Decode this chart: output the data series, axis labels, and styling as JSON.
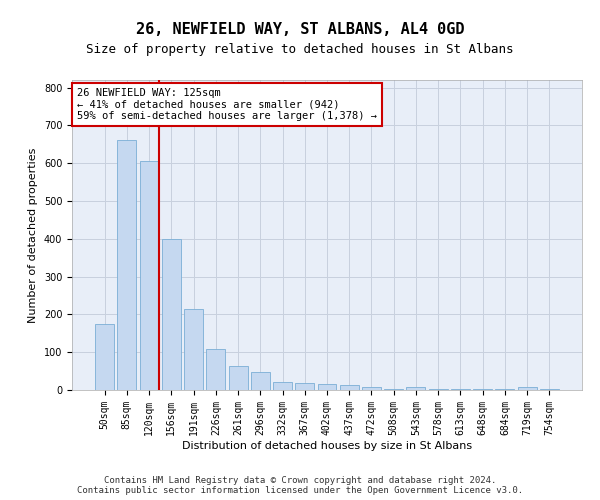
{
  "title1": "26, NEWFIELD WAY, ST ALBANS, AL4 0GD",
  "title2": "Size of property relative to detached houses in St Albans",
  "xlabel": "Distribution of detached houses by size in St Albans",
  "ylabel": "Number of detached properties",
  "categories": [
    "50sqm",
    "85sqm",
    "120sqm",
    "156sqm",
    "191sqm",
    "226sqm",
    "261sqm",
    "296sqm",
    "332sqm",
    "367sqm",
    "402sqm",
    "437sqm",
    "472sqm",
    "508sqm",
    "543sqm",
    "578sqm",
    "613sqm",
    "648sqm",
    "684sqm",
    "719sqm",
    "754sqm"
  ],
  "values": [
    175,
    660,
    607,
    400,
    215,
    108,
    63,
    47,
    20,
    18,
    15,
    12,
    8,
    2,
    8,
    2,
    2,
    2,
    2,
    8,
    2
  ],
  "bar_color": "#c5d8f0",
  "bar_edge_color": "#7aaed6",
  "grid_color": "#c8d0de",
  "background_color": "#e8eef8",
  "annotation_box_color": "#ffffff",
  "annotation_border_color": "#cc0000",
  "vline_color": "#cc0000",
  "vline_x_index": 2,
  "annotation_text_line1": "26 NEWFIELD WAY: 125sqm",
  "annotation_text_line2": "← 41% of detached houses are smaller (942)",
  "annotation_text_line3": "59% of semi-detached houses are larger (1,378) →",
  "ylim": [
    0,
    820
  ],
  "yticks": [
    0,
    100,
    200,
    300,
    400,
    500,
    600,
    700,
    800
  ],
  "footer1": "Contains HM Land Registry data © Crown copyright and database right 2024.",
  "footer2": "Contains public sector information licensed under the Open Government Licence v3.0.",
  "title1_fontsize": 11,
  "title2_fontsize": 9,
  "axis_label_fontsize": 8,
  "tick_fontsize": 7,
  "annotation_fontsize": 7.5,
  "footer_fontsize": 6.5
}
